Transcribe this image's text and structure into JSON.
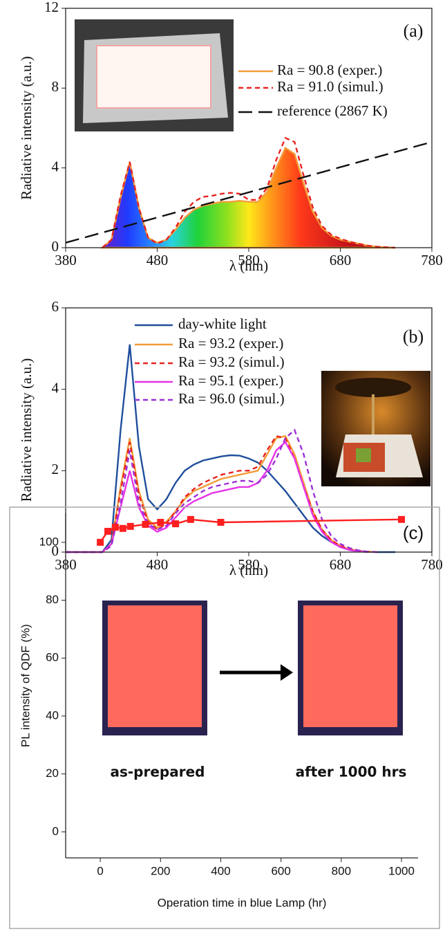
{
  "chart_data": [
    {
      "type": "line",
      "panel_label": "(a)",
      "xlabel": "λ (nm)",
      "ylabel": "Radiative intensity (a.u.)",
      "x": [
        380,
        390,
        400,
        410,
        420,
        430,
        440,
        450,
        460,
        470,
        480,
        490,
        500,
        510,
        520,
        530,
        540,
        550,
        560,
        570,
        580,
        590,
        600,
        610,
        620,
        630,
        640,
        650,
        660,
        670,
        680,
        690,
        700,
        710,
        720,
        730,
        740,
        750,
        760,
        770,
        780
      ],
      "xlim": [
        380,
        780
      ],
      "ylim": [
        0,
        12
      ],
      "xticks": [
        380,
        480,
        580,
        680,
        780
      ],
      "yticks": [
        0,
        4,
        8,
        12
      ],
      "series": [
        {
          "name": "Ra = 90.8 (exper.)",
          "color": "#f39c3a",
          "dash": "solid",
          "fill": "spectrum",
          "values": [
            null,
            null,
            null,
            null,
            0,
            0.4,
            2.5,
            4.3,
            2.0,
            0.5,
            0.25,
            0.4,
            0.9,
            1.5,
            1.9,
            2.1,
            2.2,
            2.3,
            2.3,
            2.35,
            2.3,
            2.3,
            2.8,
            4.0,
            5.0,
            4.7,
            3.2,
            1.8,
            1.0,
            0.6,
            0.4,
            0.3,
            0.2,
            0.1,
            0.05,
            0.02,
            0,
            null,
            null,
            null,
            null
          ]
        },
        {
          "name": "Ra = 91.0 (simul.)",
          "color": "#e8231f",
          "dash": "dashed",
          "values": [
            null,
            null,
            null,
            null,
            0,
            0.4,
            2.6,
            4.3,
            2.0,
            0.5,
            0.2,
            0.4,
            1.0,
            1.8,
            2.3,
            2.55,
            2.6,
            2.7,
            2.75,
            2.7,
            2.4,
            2.4,
            3.0,
            4.4,
            5.5,
            5.3,
            3.6,
            2.0,
            1.1,
            0.65,
            0.45,
            0.3,
            0.2,
            0.1,
            0.05,
            0.02,
            0,
            null,
            null,
            null,
            null
          ]
        },
        {
          "name": "reference (2867 K)",
          "color": "#111111",
          "dash": "long-dashed",
          "x": [
            380,
            780
          ],
          "values": [
            0.25,
            5.3
          ]
        }
      ]
    },
    {
      "type": "line",
      "panel_label": "(b)",
      "xlabel": "λ (nm)",
      "ylabel": "Radiative intensity (a.u.)",
      "x": [
        380,
        390,
        400,
        410,
        420,
        430,
        440,
        450,
        460,
        470,
        480,
        490,
        500,
        510,
        520,
        530,
        540,
        550,
        560,
        570,
        580,
        590,
        600,
        610,
        620,
        630,
        640,
        650,
        660,
        670,
        680,
        690,
        700,
        710,
        720,
        730,
        740,
        750,
        760,
        770,
        780
      ],
      "xlim": [
        380,
        780
      ],
      "ylim": [
        0,
        6
      ],
      "xticks": [
        380,
        480,
        580,
        680,
        780
      ],
      "yticks": [
        0,
        2,
        4,
        6
      ],
      "series": [
        {
          "name": "day-white light",
          "color": "#1f4e9c",
          "dash": "solid",
          "values": [
            0,
            0,
            0,
            0,
            0,
            0.3,
            3.0,
            5.1,
            2.6,
            1.3,
            1.05,
            1.3,
            1.7,
            2.0,
            2.15,
            2.25,
            2.3,
            2.35,
            2.38,
            2.37,
            2.3,
            2.2,
            2.0,
            1.75,
            1.5,
            1.2,
            0.9,
            0.6,
            0.4,
            0.25,
            0.13,
            0.07,
            0.03,
            0.01,
            0,
            0,
            0,
            null,
            null,
            null,
            null
          ]
        },
        {
          "name": "Ra = 93.2 (exper.)",
          "color": "#f39c3a",
          "dash": "solid",
          "values": [
            0,
            0,
            0,
            0,
            0,
            0.2,
            1.6,
            2.8,
            1.5,
            0.8,
            0.6,
            0.75,
            1.0,
            1.3,
            1.5,
            1.6,
            1.7,
            1.8,
            1.85,
            1.9,
            1.95,
            2.0,
            2.4,
            2.8,
            2.85,
            2.4,
            1.7,
            1.0,
            0.55,
            0.3,
            0.15,
            0.07,
            0.03,
            0.01,
            0,
            null,
            null,
            null,
            null,
            null,
            null
          ]
        },
        {
          "name": "Ra = 93.2 (simul.)",
          "color": "#e8231f",
          "dash": "dashed",
          "values": [
            0,
            0,
            0,
            0,
            0,
            0.2,
            1.5,
            2.7,
            1.4,
            0.75,
            0.55,
            0.7,
            1.0,
            1.35,
            1.55,
            1.7,
            1.8,
            1.9,
            1.95,
            2.0,
            2.0,
            2.1,
            2.5,
            2.85,
            2.8,
            2.3,
            1.6,
            1.0,
            0.55,
            0.3,
            0.15,
            0.07,
            0.03,
            0.01,
            0,
            null,
            null,
            null,
            null,
            null,
            null
          ]
        },
        {
          "name": "Ra = 95.1 (exper.)",
          "color": "#e632e6",
          "dash": "solid",
          "values": [
            0,
            0,
            0,
            0,
            0,
            0.2,
            1.1,
            2.0,
            1.1,
            0.65,
            0.5,
            0.6,
            0.85,
            1.1,
            1.25,
            1.35,
            1.45,
            1.5,
            1.55,
            1.6,
            1.6,
            1.7,
            2.0,
            2.5,
            2.7,
            2.3,
            1.6,
            0.9,
            0.5,
            0.25,
            0.12,
            0.05,
            0.02,
            0,
            null,
            null,
            null,
            null,
            null,
            null,
            null
          ]
        },
        {
          "name": "Ra = 96.0 (simul.)",
          "color": "#9b2fd6",
          "dash": "dashed",
          "values": [
            0,
            0,
            0,
            0,
            0,
            0.15,
            1.2,
            2.5,
            1.2,
            0.7,
            0.55,
            0.65,
            0.95,
            1.2,
            1.35,
            1.5,
            1.6,
            1.65,
            1.7,
            1.75,
            1.75,
            1.7,
            1.9,
            2.3,
            2.8,
            3.0,
            2.4,
            1.5,
            0.8,
            0.4,
            0.2,
            0.1,
            0.04,
            0.01,
            0,
            null,
            null,
            null,
            null,
            null,
            null
          ]
        }
      ]
    },
    {
      "type": "line",
      "panel_label": "(c)",
      "xlabel": "Operation time in blue Lamp (hr)",
      "ylabel": "PL intensity of QDF (%)",
      "x": [
        0,
        25,
        50,
        75,
        100,
        150,
        200,
        250,
        300,
        400,
        1000
      ],
      "xlim": [
        -115,
        1055
      ],
      "ylim": [
        -9,
        110
      ],
      "xticks": [
        0,
        200,
        400,
        600,
        800,
        1000
      ],
      "yticks": [
        0,
        20,
        40,
        60,
        80,
        100
      ],
      "series": [
        {
          "color": "#ff1f1f",
          "dash": "solid",
          "marker": "square",
          "values": [
            100,
            103.8,
            105.2,
            104.8,
            105.5,
            106.2,
            106.9,
            106.4,
            107.9,
            106.9,
            107.9
          ]
        }
      ],
      "annotations": [
        "as-prepared",
        "after 1000 hrs"
      ]
    }
  ]
}
